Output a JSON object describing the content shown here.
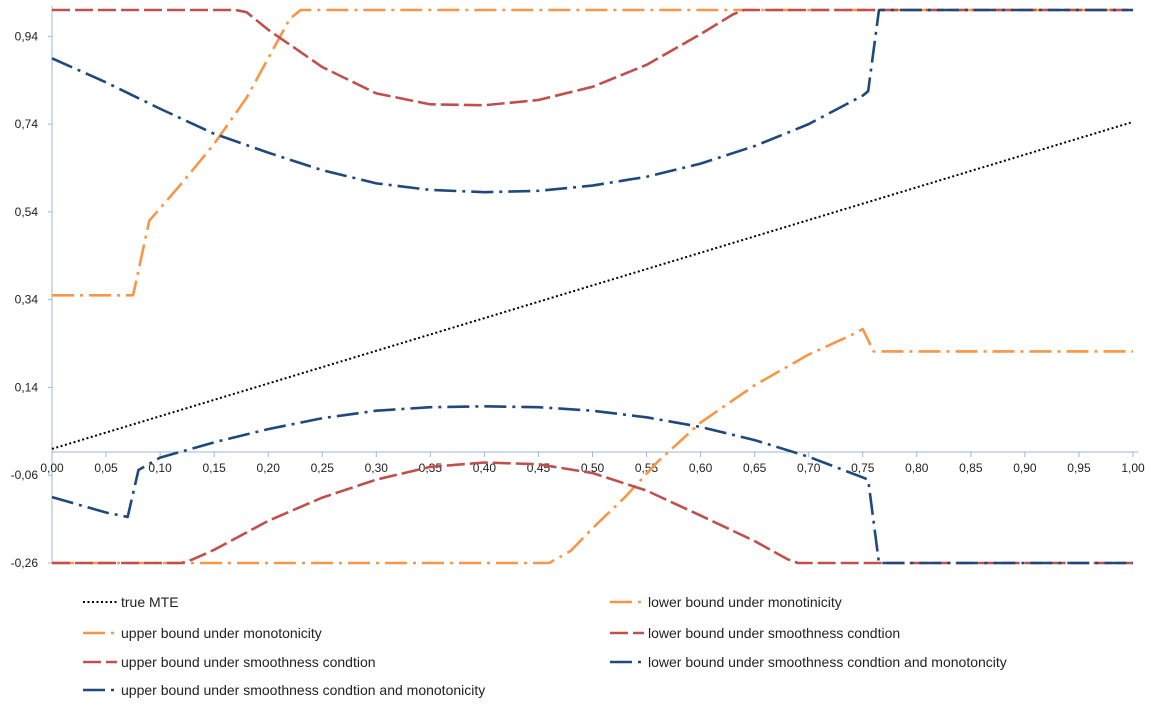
{
  "chart_data": {
    "type": "line",
    "title": "",
    "xlabel": "",
    "ylabel": "",
    "xlim": [
      0,
      1
    ],
    "ylim": [
      -0.26,
      1.0
    ],
    "x_ticks": [
      "0,00",
      "0,05",
      "0,10",
      "0,15",
      "0,20",
      "0,25",
      "0,30",
      "0,35",
      "0,40",
      "0,45",
      "0,50",
      "0,55",
      "0,60",
      "0,65",
      "0,70",
      "0,75",
      "0,80",
      "0,85",
      "0,90",
      "0,95",
      "1,00"
    ],
    "y_ticks": [
      "0,94",
      "0,74",
      "0,54",
      "0,34",
      "0,14",
      "-0,06",
      "-0,26"
    ],
    "y_tick_values": [
      0.94,
      0.74,
      0.54,
      0.34,
      0.14,
      -0.06,
      -0.26
    ],
    "grid": false,
    "legend_position": "bottom",
    "series": [
      {
        "name": "true MTE",
        "color": "#000000",
        "style": "dotted",
        "x": [
          0.0,
          1.0
        ],
        "y": [
          0.0,
          0.745
        ]
      },
      {
        "name": "lower bound under monotinicity",
        "color": "#f79646",
        "style": "dashdot",
        "x": [
          0.0,
          0.1,
          0.2,
          0.3,
          0.4,
          0.46,
          0.48,
          0.5,
          0.53,
          0.56,
          0.6,
          0.65,
          0.7,
          0.74,
          0.75,
          0.76,
          0.8,
          0.9,
          1.0
        ],
        "y": [
          -0.26,
          -0.26,
          -0.26,
          -0.26,
          -0.26,
          -0.26,
          -0.232,
          -0.181,
          -0.11,
          -0.03,
          0.06,
          0.145,
          0.215,
          0.26,
          0.273,
          0.222,
          0.222,
          0.222,
          0.222
        ]
      },
      {
        "name": "upper bound under monotonicity",
        "color": "#f79646",
        "style": "dashdot",
        "x": [
          0.0,
          0.065,
          0.075,
          0.09,
          0.12,
          0.15,
          0.18,
          0.2,
          0.22,
          0.23,
          0.3,
          0.5,
          0.7,
          0.9,
          1.0
        ],
        "y": [
          0.35,
          0.35,
          0.35,
          0.52,
          0.605,
          0.695,
          0.8,
          0.89,
          0.98,
          1.0,
          1.0,
          1.0,
          1.0,
          1.0,
          1.0
        ]
      },
      {
        "name": "lower bound under smoothness condtion",
        "color": "#c0504d",
        "style": "dash",
        "x": [
          0.0,
          0.12,
          0.13,
          0.15,
          0.2,
          0.25,
          0.3,
          0.35,
          0.4,
          0.45,
          0.5,
          0.55,
          0.6,
          0.65,
          0.68,
          0.69,
          0.7,
          0.8,
          0.9,
          1.0
        ],
        "y": [
          -0.26,
          -0.26,
          -0.252,
          -0.23,
          -0.164,
          -0.111,
          -0.07,
          -0.041,
          -0.031,
          -0.035,
          -0.055,
          -0.095,
          -0.152,
          -0.21,
          -0.251,
          -0.26,
          -0.26,
          -0.26,
          -0.26,
          -0.26
        ]
      },
      {
        "name": "upper bound under smoothness condtion",
        "color": "#c0504d",
        "style": "dash",
        "x": [
          0.0,
          0.15,
          0.17,
          0.18,
          0.2,
          0.25,
          0.3,
          0.35,
          0.4,
          0.45,
          0.5,
          0.55,
          0.6,
          0.63,
          0.64,
          0.7,
          0.8,
          0.9,
          1.0
        ],
        "y": [
          1.0,
          1.0,
          1.0,
          0.995,
          0.955,
          0.87,
          0.81,
          0.785,
          0.783,
          0.795,
          0.825,
          0.875,
          0.945,
          0.99,
          1.0,
          1.0,
          1.0,
          1.0,
          1.0
        ]
      },
      {
        "name": "lower bound under smoothness condtion and monotoncity",
        "color": "#1f497d",
        "style": "dashdot",
        "x": [
          0.0,
          0.05,
          0.07,
          0.08,
          0.1,
          0.15,
          0.2,
          0.25,
          0.3,
          0.35,
          0.4,
          0.45,
          0.5,
          0.55,
          0.6,
          0.65,
          0.7,
          0.75,
          0.755,
          0.765,
          0.8,
          0.9,
          1.0
        ],
        "y": [
          -0.11,
          -0.145,
          -0.155,
          -0.048,
          -0.02,
          0.015,
          0.045,
          0.07,
          0.087,
          0.095,
          0.097,
          0.095,
          0.087,
          0.072,
          0.05,
          0.02,
          -0.018,
          -0.065,
          -0.07,
          -0.26,
          -0.26,
          -0.26,
          -0.26
        ]
      },
      {
        "name": "upper bound under smoothness condtion and monotonicity",
        "color": "#1f497d",
        "style": "dashdot",
        "x": [
          0.0,
          0.05,
          0.1,
          0.15,
          0.2,
          0.25,
          0.3,
          0.35,
          0.4,
          0.45,
          0.5,
          0.55,
          0.6,
          0.65,
          0.7,
          0.75,
          0.755,
          0.765,
          0.8,
          0.9,
          1.0
        ],
        "y": [
          0.89,
          0.835,
          0.775,
          0.718,
          0.675,
          0.635,
          0.605,
          0.59,
          0.585,
          0.588,
          0.6,
          0.62,
          0.65,
          0.69,
          0.74,
          0.805,
          0.815,
          1.0,
          1.0,
          1.0,
          1.0
        ]
      }
    ],
    "legend_order": [
      0,
      1,
      2,
      3,
      4,
      5,
      6
    ]
  }
}
